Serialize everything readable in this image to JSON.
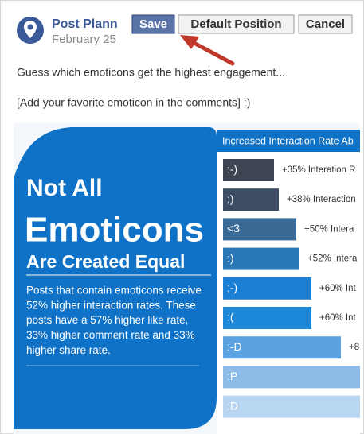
{
  "header": {
    "name": "Post Plann",
    "date": "February 25"
  },
  "buttons": [
    "Save",
    "Default Position",
    "Cancel"
  ],
  "post": {
    "lines": [
      "Guess which emoticons get the highest engagement...",
      "[Add your favorite emoticon in the comments] :)"
    ]
  },
  "infographic": {
    "headline": [
      "Not All",
      "Emoticons",
      "Are Created Equal"
    ],
    "paragraph": [
      "Posts that contain emoticons receive",
      "52% higher interaction rates.  These",
      "posts have a 57% higher like rate,",
      "33% higher comment rate and 33%",
      "higher share rate."
    ],
    "panel_title": "Increased Interaction Rate Ab",
    "rows": [
      {
        "emoticon": ":-)",
        "label": "+35% Interation R"
      },
      {
        "emoticon": ";)",
        "label": "+38% Interaction"
      },
      {
        "emoticon": "<3",
        "label": "+50% Intera"
      },
      {
        "emoticon": ":)",
        "label": "+52% Intera"
      },
      {
        "emoticon": ";-)",
        "label": "+60% Int"
      },
      {
        "emoticon": ":(",
        "label": "+60% Int"
      },
      {
        "emoticon": ":-D",
        "label": "+8"
      },
      {
        "emoticon": ":P",
        "label": ""
      },
      {
        "emoticon": ":D",
        "label": ""
      }
    ]
  }
}
